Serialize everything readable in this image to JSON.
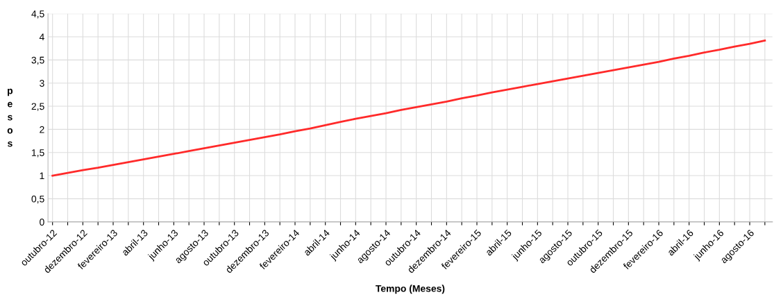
{
  "chart_data": {
    "type": "line",
    "xlabel": "Tempo (Meses)",
    "ylabel": "pesos",
    "categories": [
      "outubro-12",
      null,
      "dezembro-12",
      null,
      "fevereiro-13",
      null,
      "abril-13",
      null,
      "junho-13",
      null,
      "agosto-13",
      null,
      "outubro-13",
      null,
      "dezembro-13",
      null,
      "fevereiro-14",
      null,
      "abril-14",
      null,
      "junho-14",
      null,
      "agosto-14",
      null,
      "outubro-14",
      null,
      "dezembro-14",
      null,
      "fevereiro-15",
      null,
      "abril-15",
      null,
      "junho-15",
      null,
      "agosto-15",
      null,
      "outubro-15",
      null,
      "dezembro-15",
      null,
      "fevereiro-16",
      null,
      "abril-16",
      null,
      "junho-16",
      null,
      "agosto-16",
      null
    ],
    "series": [
      {
        "color": "#ff2a2a",
        "values": [
          1.0,
          1.06,
          1.12,
          1.17,
          1.23,
          1.29,
          1.35,
          1.41,
          1.47,
          1.53,
          1.59,
          1.65,
          1.71,
          1.77,
          1.83,
          1.89,
          1.96,
          2.02,
          2.09,
          2.16,
          2.23,
          2.29,
          2.35,
          2.42,
          2.48,
          2.54,
          2.6,
          2.67,
          2.73,
          2.8,
          2.86,
          2.92,
          2.98,
          3.04,
          3.1,
          3.16,
          3.22,
          3.28,
          3.34,
          3.4,
          3.46,
          3.53,
          3.59,
          3.66,
          3.72,
          3.79,
          3.85,
          3.92
        ]
      }
    ],
    "ylim": [
      0,
      4.5
    ],
    "yticks": [
      {
        "value": 0,
        "label": "0"
      },
      {
        "value": 0.5,
        "label": "0,5"
      },
      {
        "value": 1,
        "label": "1"
      },
      {
        "value": 1.5,
        "label": "1,5"
      },
      {
        "value": 2,
        "label": "2"
      },
      {
        "value": 2.5,
        "label": "2,5"
      },
      {
        "value": 3,
        "label": "3"
      },
      {
        "value": 3.5,
        "label": "3,5"
      },
      {
        "value": 4,
        "label": "4"
      },
      {
        "value": 4.5,
        "label": "4,5"
      }
    ],
    "grid": true,
    "line_style": "solid",
    "marker": "none"
  }
}
